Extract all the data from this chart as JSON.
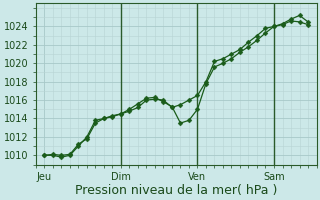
{
  "bg_color": "#cce8e8",
  "plot_bg_color": "#cce8e8",
  "grid_color_major": "#a8c8c8",
  "grid_color_minor": "#b8d4d4",
  "line_color": "#1a5c1a",
  "marker_color": "#1a5c1a",
  "xlabel": "Pression niveau de la mer( hPa )",
  "ylim": [
    1009.0,
    1026.5
  ],
  "yticks": [
    1010,
    1012,
    1014,
    1016,
    1018,
    1020,
    1022,
    1024
  ],
  "xtick_labels": [
    "Jeu",
    "Dim",
    "Ven",
    "Sam"
  ],
  "xtick_positions": [
    0,
    36,
    72,
    108
  ],
  "xlim": [
    -4,
    128
  ],
  "vline_positions": [
    36,
    72,
    108
  ],
  "line1_x": [
    0,
    4,
    8,
    12,
    16,
    20,
    24,
    28,
    32,
    36,
    40,
    44,
    48,
    52,
    56,
    60,
    64,
    68,
    72,
    76,
    80,
    84,
    88,
    92,
    96,
    100,
    104,
    108,
    112,
    116,
    120,
    124
  ],
  "line1_y": [
    1010.0,
    1010.1,
    1010.0,
    1010.1,
    1011.2,
    1011.8,
    1013.5,
    1014.0,
    1014.2,
    1014.5,
    1014.8,
    1015.2,
    1016.0,
    1016.1,
    1016.0,
    1015.2,
    1015.5,
    1016.0,
    1016.5,
    1018.0,
    1020.2,
    1020.5,
    1021.0,
    1021.5,
    1022.3,
    1023.0,
    1023.8,
    1024.0,
    1024.3,
    1024.8,
    1025.2,
    1024.5
  ],
  "line2_x": [
    0,
    4,
    8,
    12,
    16,
    20,
    24,
    28,
    32,
    36,
    40,
    44,
    48,
    52,
    56,
    60,
    64,
    68,
    72,
    76,
    80,
    84,
    88,
    92,
    96,
    100,
    104,
    108,
    112,
    116,
    120,
    124
  ],
  "line2_y": [
    1010.0,
    1010.0,
    1009.8,
    1010.0,
    1011.0,
    1012.0,
    1013.8,
    1014.0,
    1014.3,
    1014.5,
    1015.0,
    1015.6,
    1016.2,
    1016.3,
    1015.8,
    1015.3,
    1013.5,
    1013.8,
    1015.0,
    1017.8,
    1019.6,
    1020.0,
    1020.5,
    1021.2,
    1021.8,
    1022.5,
    1023.3,
    1024.0,
    1024.2,
    1024.6,
    1024.5,
    1024.2
  ],
  "xlabel_fontsize": 9,
  "tick_fontsize": 7,
  "marker_size": 2.5,
  "line_width": 0.9
}
